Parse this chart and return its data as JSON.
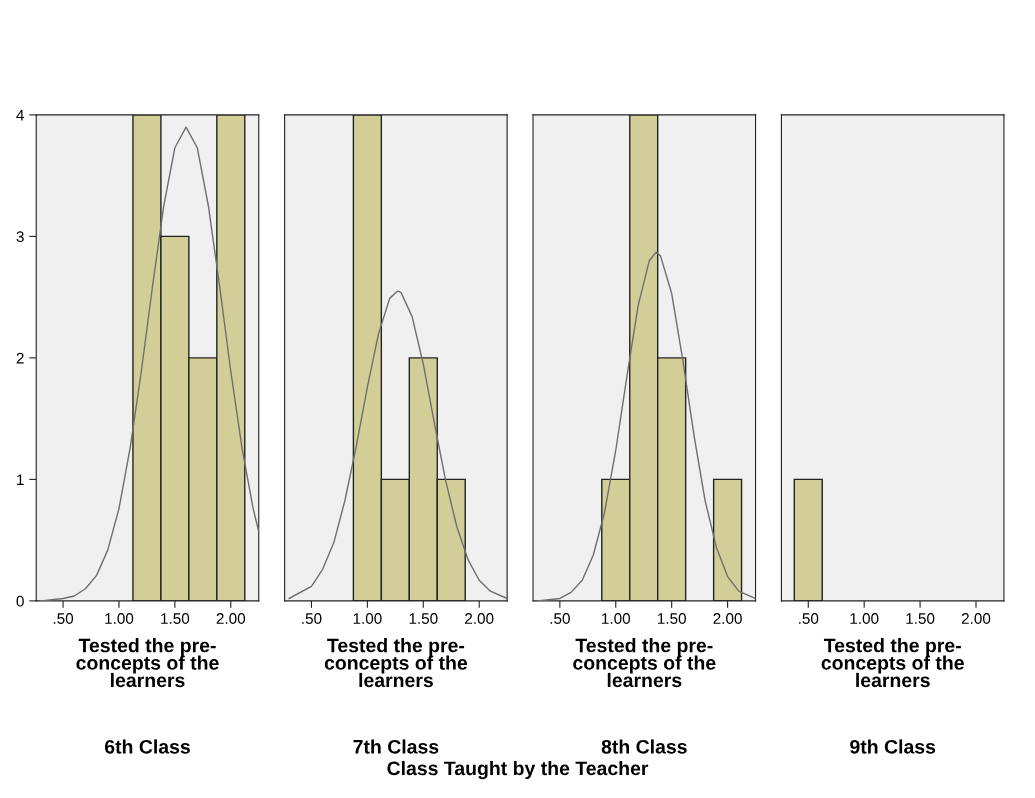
{
  "chart_data": [
    {
      "type": "histogram",
      "title": "6th Class",
      "xlabel": "Tested the pre-\nconcepts of the\nlearners",
      "annotations": [
        "Class Taught by the Teacher"
      ],
      "bins": [
        1.125,
        1.375,
        1.625,
        1.875,
        2.125
      ],
      "values": [
        4,
        3,
        2,
        4
      ],
      "color": "#d3ce97",
      "xlim": [
        0.26,
        2.25
      ],
      "ylim": [
        0,
        4
      ],
      "xticks": [
        {
          "value": 0.5,
          "label": ".50"
        },
        {
          "value": 1.0,
          "label": "1.00"
        },
        {
          "value": 1.5,
          "label": "1.50"
        },
        {
          "value": 2.0,
          "label": "2.00"
        }
      ],
      "yticks": [
        0,
        1,
        2,
        3,
        4
      ],
      "grid": false,
      "series": [
        {
          "type": "line",
          "color": "#6e6e6e",
          "x": [
            0.3,
            0.5,
            0.6,
            0.7,
            0.8,
            0.9,
            1.0,
            1.1,
            1.2,
            1.3,
            1.4,
            1.5,
            1.6,
            1.7,
            1.8,
            1.9,
            2.0,
            2.1,
            2.2,
            2.25
          ],
          "values": [
            0.0,
            0.02,
            0.04,
            0.1,
            0.21,
            0.42,
            0.76,
            1.26,
            1.89,
            2.59,
            3.25,
            3.73,
            3.9,
            3.73,
            3.25,
            2.59,
            1.89,
            1.26,
            0.76,
            0.57
          ]
        }
      ]
    },
    {
      "type": "histogram",
      "title": "7th Class",
      "xlabel": "Tested the pre-\nconcepts of the\nlearners",
      "bins": [
        0.875,
        1.125,
        1.375,
        1.625,
        1.875
      ],
      "values": [
        4,
        1,
        2,
        1
      ],
      "color": "#d3ce97",
      "xlim": [
        0.26,
        2.25
      ],
      "ylim": [
        0,
        4
      ],
      "xticks": [
        {
          "value": 0.5,
          "label": ".50"
        },
        {
          "value": 1.0,
          "label": "1.00"
        },
        {
          "value": 1.5,
          "label": "1.50"
        },
        {
          "value": 2.0,
          "label": "2.00"
        }
      ],
      "tick_labels": "x",
      "grid": false,
      "series": [
        {
          "type": "line",
          "color": "#6e6e6e",
          "x": [
            0.3,
            0.5,
            0.6,
            0.7,
            0.8,
            0.9,
            1.0,
            1.1,
            1.2,
            1.27,
            1.3,
            1.4,
            1.5,
            1.6,
            1.7,
            1.8,
            1.9,
            2.0,
            2.1,
            2.25
          ],
          "values": [
            0.02,
            0.12,
            0.26,
            0.48,
            0.83,
            1.27,
            1.76,
            2.2,
            2.49,
            2.55,
            2.54,
            2.34,
            1.95,
            1.46,
            0.99,
            0.61,
            0.34,
            0.17,
            0.08,
            0.02
          ]
        }
      ]
    },
    {
      "type": "histogram",
      "title": "8th Class",
      "xlabel": "Tested the pre-\nconcepts of the\nlearners",
      "bins": [
        0.875,
        1.125,
        1.375,
        1.625,
        1.875,
        2.125
      ],
      "values": [
        1,
        4,
        2,
        0,
        1
      ],
      "color": "#d3ce97",
      "xlim": [
        0.26,
        2.25
      ],
      "ylim": [
        0,
        4
      ],
      "xticks": [
        {
          "value": 0.5,
          "label": ".50"
        },
        {
          "value": 1.0,
          "label": "1.00"
        },
        {
          "value": 1.5,
          "label": "1.50"
        },
        {
          "value": 2.0,
          "label": "2.00"
        }
      ],
      "tick_labels": "x",
      "grid": false,
      "series": [
        {
          "type": "line",
          "color": "#6e6e6e",
          "x": [
            0.3,
            0.5,
            0.6,
            0.7,
            0.8,
            0.9,
            1.0,
            1.1,
            1.2,
            1.3,
            1.36,
            1.4,
            1.5,
            1.6,
            1.7,
            1.8,
            1.9,
            2.0,
            2.1,
            2.25
          ],
          "values": [
            0.0,
            0.02,
            0.07,
            0.17,
            0.38,
            0.73,
            1.24,
            1.85,
            2.43,
            2.8,
            2.87,
            2.84,
            2.53,
            1.98,
            1.36,
            0.82,
            0.44,
            0.2,
            0.08,
            0.02
          ]
        }
      ]
    },
    {
      "type": "histogram",
      "title": "9th Class",
      "xlabel": "Tested the pre-\nconcepts of the\nlearners",
      "bins": [
        0.375,
        0.625
      ],
      "values": [
        1
      ],
      "color": "#d3ce97",
      "xlim": [
        0.26,
        2.25
      ],
      "ylim": [
        0,
        4
      ],
      "xticks": [
        {
          "value": 0.5,
          "label": ".50"
        },
        {
          "value": 1.0,
          "label": "1.00"
        },
        {
          "value": 1.5,
          "label": "1.50"
        },
        {
          "value": 2.0,
          "label": "2.00"
        }
      ],
      "tick_labels": "x",
      "grid": false
    }
  ]
}
